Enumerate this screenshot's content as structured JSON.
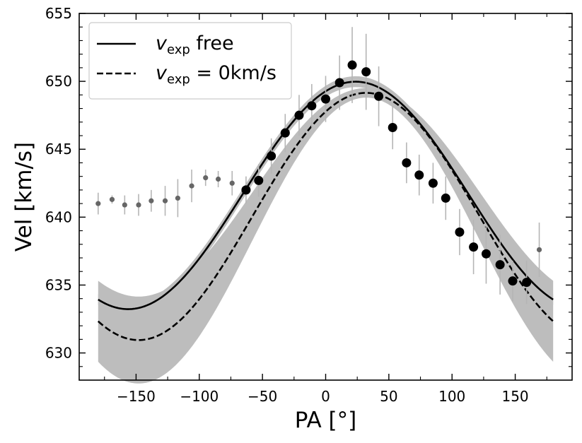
{
  "chart_data": {
    "type": "line",
    "title": "",
    "xlabel": "PA [°]",
    "ylabel": "Vel [km/s]",
    "xlim": [
      -195,
      195
    ],
    "ylim": [
      628,
      655
    ],
    "xticks": [
      -150,
      -100,
      -50,
      0,
      50,
      100,
      150
    ],
    "xtick_labels": [
      "−150",
      "−100",
      "−50",
      "0",
      "50",
      "100",
      "150"
    ],
    "yticks": [
      630,
      635,
      640,
      645,
      650,
      655
    ],
    "ytick_labels": [
      "630",
      "635",
      "640",
      "645",
      "650",
      "655"
    ],
    "grid": false,
    "legend_position": "top-left",
    "series": [
      {
        "name": "v_exp free",
        "legend_var": "v",
        "legend_sub": "exp",
        "legend_rest": " free",
        "style": "solid",
        "color": "#000000",
        "model": {
          "v_sys": 641.6,
          "v_rot": 8.2,
          "pa_rot": 12,
          "v_exp": 1.7,
          "band_halfwidth": 0.4
        }
      },
      {
        "name": "v_exp = 0km/s",
        "legend_var": "v",
        "legend_sub": "exp",
        "legend_rest": " = 0km/s",
        "style": "dashed",
        "color": "#000000",
        "model": {
          "v_sys": 640.05,
          "v_rot": 9.1,
          "pa_rot": 32,
          "v_exp": 0,
          "band_halfwidth_mid": 0.35,
          "band_halfwidth_ends": 3.2
        }
      }
    ],
    "data_points": {
      "name": "fitted data",
      "color": "#000000",
      "points": [
        {
          "x": -63,
          "y": 642.0,
          "err": 1.0
        },
        {
          "x": -53,
          "y": 642.7,
          "err": 1.2
        },
        {
          "x": -43,
          "y": 644.5,
          "err": 1.3
        },
        {
          "x": -32,
          "y": 646.2,
          "err": 1.4
        },
        {
          "x": -21,
          "y": 647.5,
          "err": 1.5
        },
        {
          "x": -11,
          "y": 648.2,
          "err": 1.6
        },
        {
          "x": 0,
          "y": 648.7,
          "err": 1.7
        },
        {
          "x": 11,
          "y": 649.9,
          "err": 2.0
        },
        {
          "x": 21,
          "y": 651.2,
          "err": 2.8
        },
        {
          "x": 32,
          "y": 650.7,
          "err": 2.8
        },
        {
          "x": 42,
          "y": 648.9,
          "err": 2.2
        },
        {
          "x": 53,
          "y": 646.6,
          "err": 1.6
        },
        {
          "x": 64,
          "y": 644.0,
          "err": 1.5
        },
        {
          "x": 74,
          "y": 643.1,
          "err": 1.5
        },
        {
          "x": 85,
          "y": 642.5,
          "err": 1.5
        },
        {
          "x": 95,
          "y": 641.4,
          "err": 1.6
        },
        {
          "x": 106,
          "y": 638.9,
          "err": 1.7
        },
        {
          "x": 117,
          "y": 637.8,
          "err": 2.0
        },
        {
          "x": 127,
          "y": 637.3,
          "err": 2.2
        },
        {
          "x": 138,
          "y": 636.5,
          "err": 2.2
        },
        {
          "x": 148,
          "y": 635.3,
          "err": 1.5
        },
        {
          "x": 159,
          "y": 635.2,
          "err": 1.6
        }
      ]
    },
    "excluded_points": {
      "name": "excluded data",
      "color": "#666666",
      "points": [
        {
          "x": -180,
          "y": 641.0,
          "err": 0.8
        },
        {
          "x": -169,
          "y": 641.3,
          "err": 0.3
        },
        {
          "x": -159,
          "y": 640.9,
          "err": 0.7
        },
        {
          "x": -148,
          "y": 640.9,
          "err": 0.8
        },
        {
          "x": -138,
          "y": 641.2,
          "err": 0.8
        },
        {
          "x": -127,
          "y": 641.2,
          "err": 1.1
        },
        {
          "x": -117,
          "y": 641.4,
          "err": 1.4
        },
        {
          "x": -106,
          "y": 642.3,
          "err": 1.2
        },
        {
          "x": -95,
          "y": 642.9,
          "err": 0.6
        },
        {
          "x": -85,
          "y": 642.8,
          "err": 0.6
        },
        {
          "x": -74,
          "y": 642.5,
          "err": 0.9
        },
        {
          "x": 169,
          "y": 637.6,
          "err": 2.0
        }
      ]
    }
  }
}
